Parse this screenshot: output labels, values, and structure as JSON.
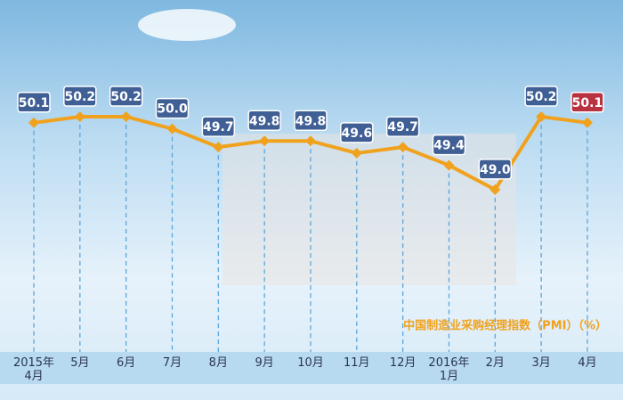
{
  "chart_data": {
    "type": "line",
    "title": "中国制造业采购经理指数（PMI）（%）",
    "categories": [
      "2015年\n4月",
      "5月",
      "6月",
      "7月",
      "8月",
      "9月",
      "10月",
      "11月",
      "12月",
      "2016年\n1月",
      "2月",
      "3月",
      "4月"
    ],
    "series": [
      {
        "name": "中国制造业采购经理指数（PMI）（%）",
        "color": "#f0a21e",
        "values": [
          50.1,
          50.2,
          50.2,
          50.0,
          49.7,
          49.8,
          49.8,
          49.6,
          49.7,
          49.4,
          49.0,
          50.2,
          50.1
        ],
        "value_labels": [
          "50.1",
          "50.2",
          "50.2",
          "50.0",
          "49.7",
          "49.8",
          "49.8",
          "49.6",
          "49.7",
          "49.4",
          "49.0",
          "50.2",
          "50.1"
        ],
        "label_colors": [
          "#3f5f95",
          "#3f5f95",
          "#3f5f95",
          "#3f5f95",
          "#3f5f95",
          "#3f5f95",
          "#3f5f95",
          "#3f5f95",
          "#3f5f95",
          "#3f5f95",
          "#3f5f95",
          "#3f5f95",
          "#b83240"
        ]
      }
    ],
    "ylim": [
      48.5,
      50.5
    ]
  }
}
